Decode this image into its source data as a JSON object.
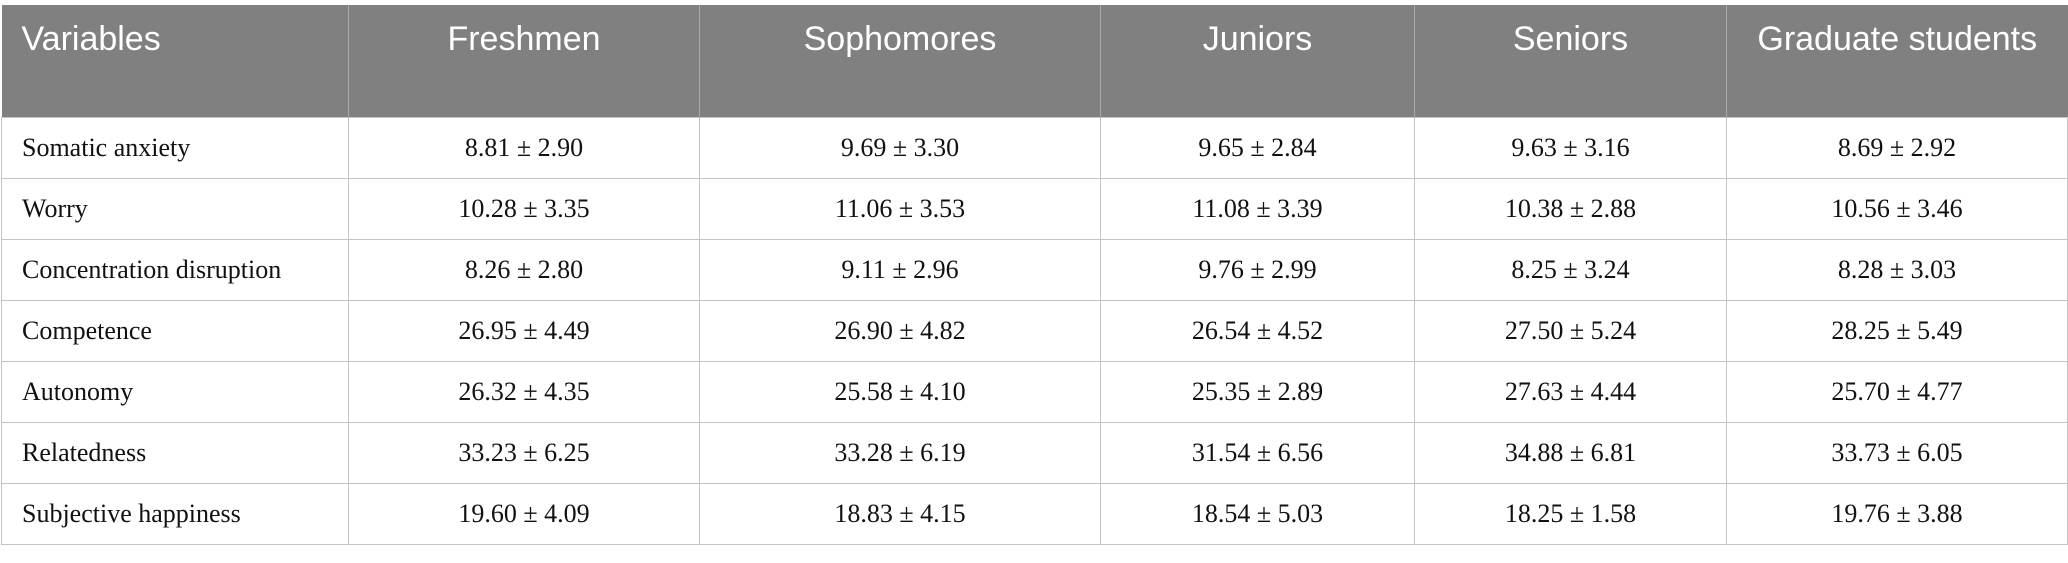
{
  "table": {
    "header": [
      "Variables",
      "Freshmen",
      "Sophomores",
      "Juniors",
      "Seniors",
      "Graduate students"
    ],
    "rows": [
      [
        "Somatic anxiety",
        "8.81 ± 2.90",
        "9.69 ± 3.30",
        "9.65 ± 2.84",
        "9.63 ± 3.16",
        "8.69 ± 2.92"
      ],
      [
        "Worry",
        "10.28 ± 3.35",
        "11.06 ± 3.53",
        "11.08 ± 3.39",
        "10.38 ± 2.88",
        "10.56 ± 3.46"
      ],
      [
        "Concentration disruption",
        "8.26 ± 2.80",
        "9.11 ± 2.96",
        "9.76 ± 2.99",
        "8.25 ± 3.24",
        "8.28 ± 3.03"
      ],
      [
        "Competence",
        "26.95 ± 4.49",
        "26.90 ± 4.82",
        "26.54 ± 4.52",
        "27.50 ± 5.24",
        "28.25 ± 5.49"
      ],
      [
        "Autonomy",
        "26.32 ± 4.35",
        "25.58 ± 4.10",
        "25.35 ± 2.89",
        "27.63 ± 4.44",
        "25.70 ± 4.77"
      ],
      [
        "Relatedness",
        "33.23 ± 6.25",
        "33.28 ± 6.19",
        "31.54 ± 6.56",
        "34.88 ± 6.81",
        "33.73 ± 6.05"
      ],
      [
        "Subjective happiness",
        "19.60 ± 4.09",
        "18.83 ± 4.15",
        "18.54 ± 5.03",
        "18.25 ± 1.58",
        "19.76 ± 3.88"
      ]
    ]
  }
}
